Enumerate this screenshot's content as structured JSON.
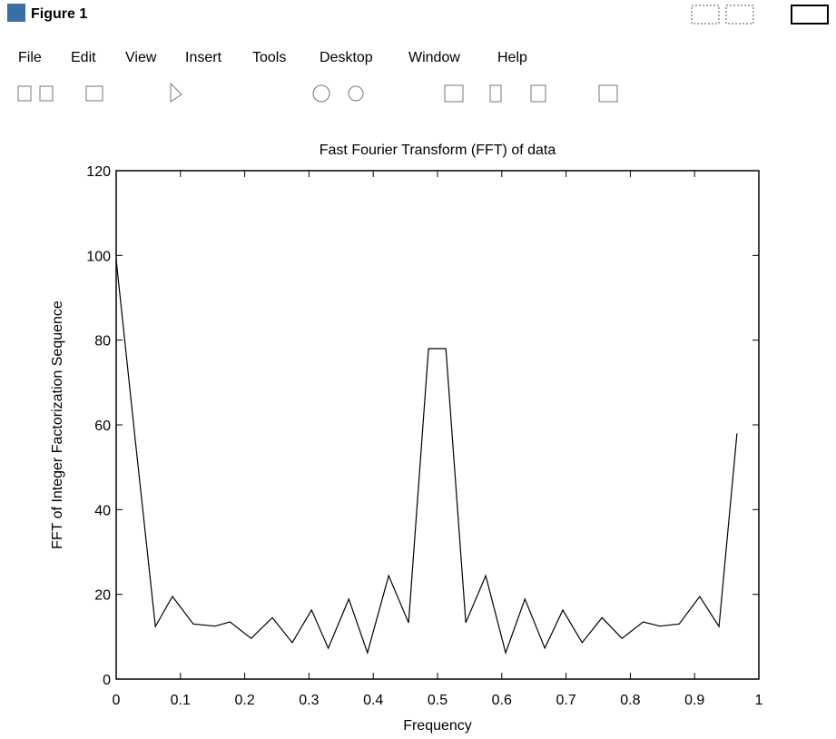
{
  "window": {
    "title": "Figure 1",
    "menu": [
      "File",
      "Edit",
      "View",
      "Insert",
      "Tools",
      "Desktop",
      "Window",
      "Help"
    ]
  },
  "chart_data": {
    "type": "line",
    "title": "Fast Fourier Transform (FFT) of data",
    "x_label": "Frequency",
    "y_label": "FFT of Integer Factorization Sequence",
    "x": [
      0,
      0.03,
      0.061,
      0.0875,
      0.12,
      0.154,
      0.177,
      0.21,
      0.243,
      0.274,
      0.304,
      0.33,
      0.362,
      0.391,
      0.424,
      0.455,
      0.486,
      0.513,
      0.544,
      0.575,
      0.606,
      0.636,
      0.667,
      0.695,
      0.725,
      0.756,
      0.787,
      0.82,
      0.846,
      0.876,
      0.908,
      0.938,
      0.966
    ],
    "series": [
      {
        "color": "#000000",
        "values": [
          99,
          56,
          12.4,
          19.5,
          13,
          12.5,
          13.5,
          9.6,
          14.5,
          8.6,
          16.3,
          7.3,
          18.9,
          6.2,
          24.4,
          13.3,
          78,
          78,
          13.3,
          24.4,
          6.2,
          18.9,
          7.3,
          16.3,
          8.6,
          14.5,
          9.6,
          13.5,
          12.5,
          13,
          19.5,
          12.4,
          58
        ]
      }
    ],
    "xlim": [
      0,
      1
    ],
    "ylim": [
      0,
      120
    ],
    "xticks": [
      0,
      0.1,
      0.2,
      0.3,
      0.4,
      0.5,
      0.6,
      0.7,
      0.8,
      0.9,
      1
    ],
    "yticks": [
      0,
      20,
      40,
      60,
      80,
      100,
      120
    ]
  }
}
